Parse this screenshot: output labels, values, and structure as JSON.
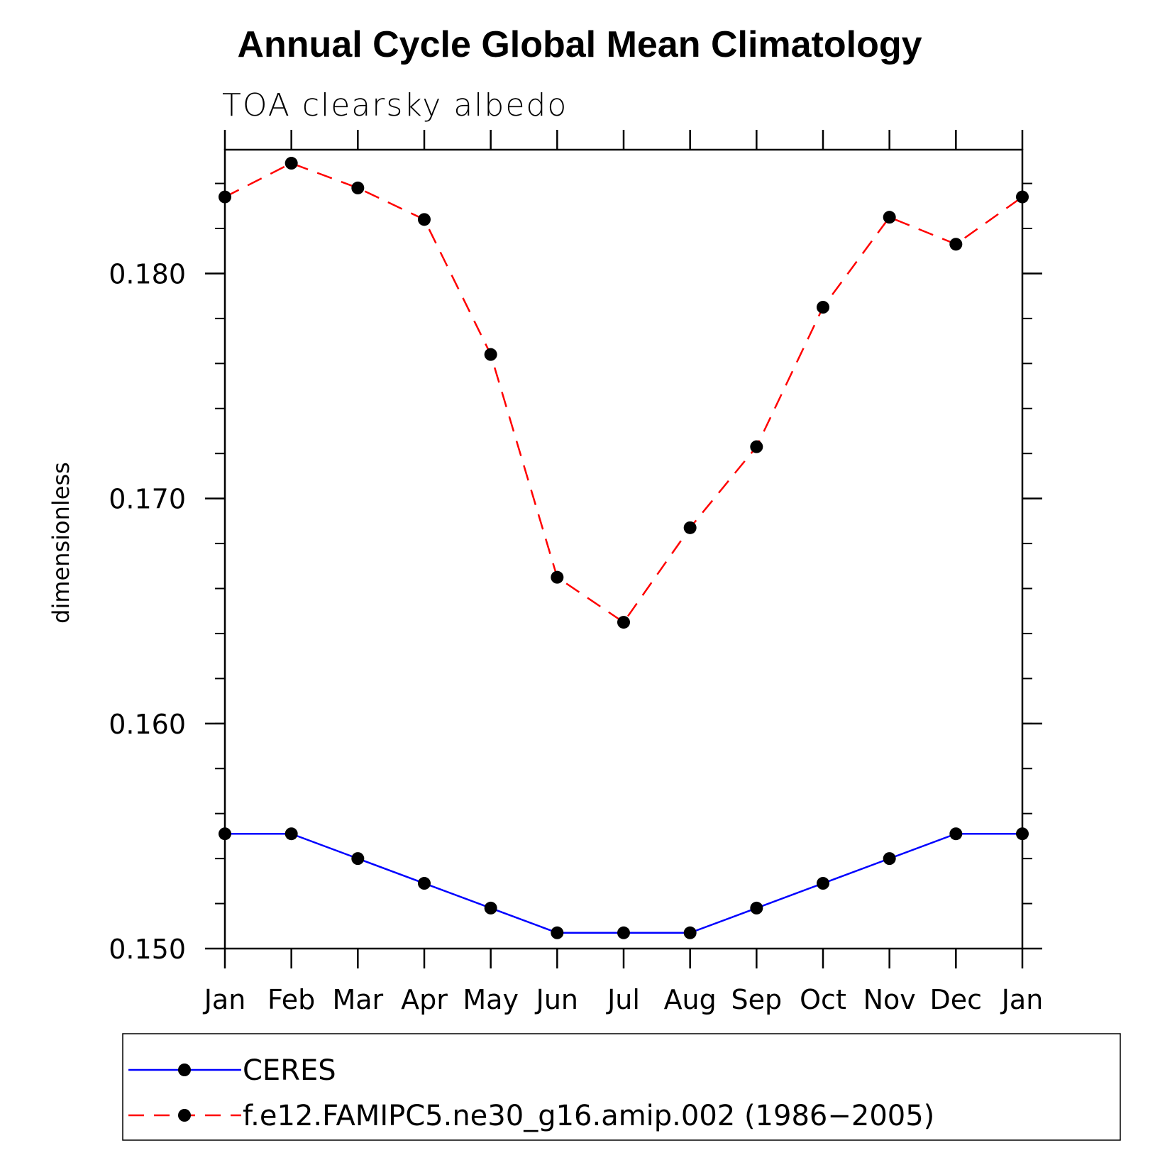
{
  "chart_data": {
    "type": "line",
    "title": "Annual Cycle Global Mean Climatology",
    "subtitle": "TOA clearsky albedo",
    "ylabel": "dimensionless",
    "xlabel": "",
    "categories": [
      "Jan",
      "Feb",
      "Mar",
      "Apr",
      "May",
      "Jun",
      "Jul",
      "Aug",
      "Sep",
      "Oct",
      "Nov",
      "Dec",
      "Jan"
    ],
    "ylim": [
      0.15,
      0.1855
    ],
    "yticks": [
      {
        "value": 0.15,
        "label": "0.150"
      },
      {
        "value": 0.16,
        "label": "0.160"
      },
      {
        "value": 0.17,
        "label": "0.170"
      },
      {
        "value": 0.18,
        "label": "0.180"
      }
    ],
    "yminor_step": 0.002,
    "grid": false,
    "legend_position": "bottom",
    "series": [
      {
        "name": "CERES",
        "color": "#0000ff",
        "dash": "solid",
        "marker": "filled-circle",
        "values": [
          0.1551,
          0.1551,
          0.154,
          0.1529,
          0.1518,
          0.1507,
          0.1507,
          0.1507,
          0.1518,
          0.1529,
          0.154,
          0.1551,
          0.1551
        ]
      },
      {
        "name": "f.e12.FAMIPC5.ne30_g16.amip.002 (1986−2005)",
        "color": "#ff0000",
        "dash": "dashed",
        "marker": "filled-circle",
        "values": [
          0.1834,
          0.1849,
          0.1838,
          0.1824,
          0.1764,
          0.1665,
          0.1645,
          0.1687,
          0.1723,
          0.1785,
          0.1825,
          0.1813,
          0.1834
        ]
      }
    ]
  }
}
